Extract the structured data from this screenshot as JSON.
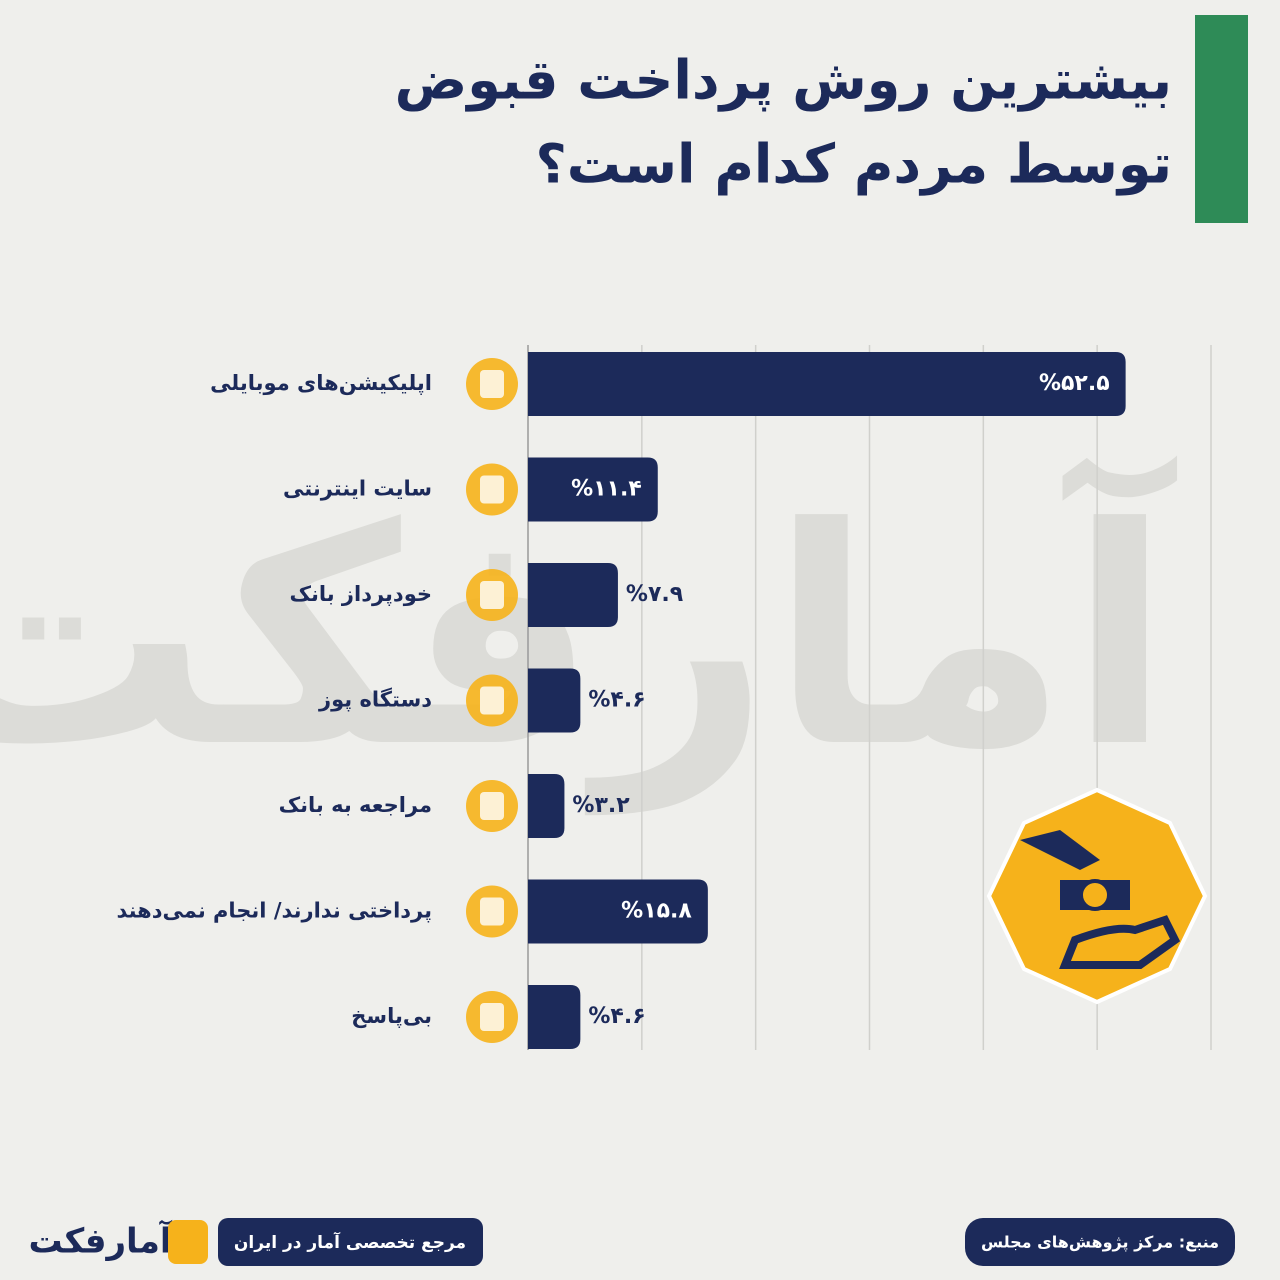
{
  "chart_data": {
    "type": "bar",
    "orientation": "horizontal",
    "title": [
      "بیشترین روش پرداخت قبوض",
      "توسط مردم کدام است؟"
    ],
    "categories": [
      "اپلیکیشن‌های موبایلی",
      "سایت اینترنتی",
      "خودپرداز بانک",
      "دستگاه پوز",
      "مراجعه به بانک",
      "پرداختی ندارند/ انجام نمی‌دهند",
      "بی‌پاسخ"
    ],
    "values": [
      52.5,
      11.4,
      7.9,
      4.6,
      3.2,
      15.8,
      4.6
    ],
    "value_labels": [
      "%۵۲.۵",
      "%۱۱.۴",
      "%۷.۹",
      "%۴.۶",
      "%۳.۲",
      "%۱۵.۸",
      "%۴.۶"
    ],
    "color": "#1c2a5a",
    "xlim": [
      0,
      60
    ],
    "xticks": [
      0,
      10,
      20,
      30,
      40,
      50,
      60
    ],
    "grid": true
  },
  "footer": {
    "brand": "آمارفکت",
    "tagline": "مرجع تخصصی آمار در ایران",
    "source": "منبع: مرکز پژوهش‌های مجلس"
  }
}
